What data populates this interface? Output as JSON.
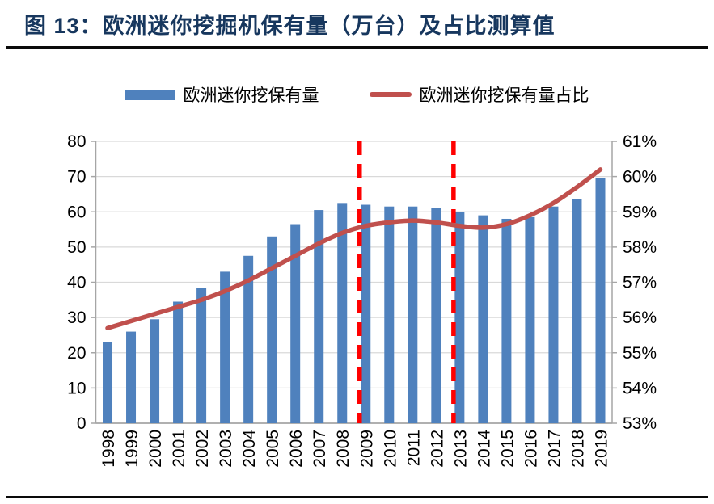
{
  "figure": {
    "title": "图 13：欧洲迷你挖掘机保有量（万台）及占比测算值"
  },
  "chart_data": {
    "type": "bar+line",
    "title": "欧洲迷你挖掘机保有量（万台）及占比测算值",
    "categories": [
      "1998",
      "1999",
      "2000",
      "2001",
      "2002",
      "2003",
      "2004",
      "2005",
      "2006",
      "2007",
      "2008",
      "2009",
      "2010",
      "2011",
      "2012",
      "2013",
      "2014",
      "2015",
      "2016",
      "2017",
      "2018",
      "2019"
    ],
    "series": [
      {
        "name": "欧洲迷你挖保有量",
        "type": "bar",
        "axis": "left",
        "color": "#4F81BD",
        "values": [
          23,
          26,
          29.5,
          34.5,
          38.5,
          43,
          47.5,
          53,
          56.5,
          60.5,
          62.5,
          62,
          61.5,
          61.5,
          61,
          60,
          59,
          58,
          58.5,
          61.5,
          63.5,
          69.5
        ]
      },
      {
        "name": "欧洲迷你挖保有量占比",
        "type": "line",
        "axis": "right",
        "color": "#C0504D",
        "values": [
          55.7,
          55.9,
          56.1,
          56.3,
          56.5,
          56.75,
          57.05,
          57.4,
          57.75,
          58.1,
          58.4,
          58.6,
          58.7,
          58.75,
          58.7,
          58.6,
          58.55,
          58.65,
          58.9,
          59.25,
          59.7,
          60.2
        ]
      }
    ],
    "left_axis": {
      "min": 0,
      "max": 80,
      "step": 10,
      "ticks": [
        "0",
        "10",
        "20",
        "30",
        "40",
        "50",
        "60",
        "70",
        "80"
      ]
    },
    "right_axis": {
      "min": 53,
      "max": 61,
      "step": 1,
      "ticks": [
        "53%",
        "54%",
        "55%",
        "56%",
        "57%",
        "58%",
        "59%",
        "60%",
        "61%"
      ]
    },
    "annotations": {
      "vlines": [
        {
          "category": "2009",
          "color": "#FF0000",
          "style": "dashed"
        },
        {
          "category": "2013",
          "color": "#FF0000",
          "style": "dashed"
        }
      ]
    },
    "grid": true,
    "legend_position": "top",
    "colors": {
      "gridline": "#D9D9D9",
      "axis_line": "#A6A6A6",
      "tick_text": "#000000",
      "title_text": "#17375E",
      "rule": "#0a0a0a"
    }
  }
}
